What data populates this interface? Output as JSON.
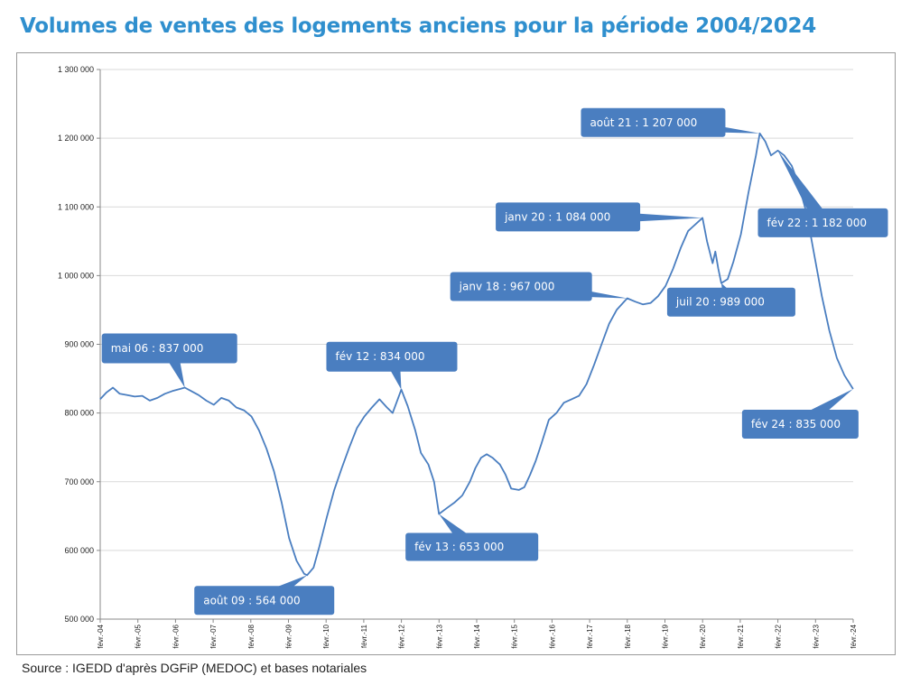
{
  "title": "Volumes de ventes des logements anciens pour la période 2004/2024",
  "source": "Source : IGEDD d'après DGFiP (MEDOC) et bases notariales",
  "colors": {
    "title": "#2f8fce",
    "line": "#4a7ec0",
    "callout": "#4a7ec0",
    "grid": "#d9d9d9"
  },
  "chart_data": {
    "type": "line",
    "title": "Volumes de ventes des logements anciens pour la période 2004/2024",
    "xlabel": "",
    "ylabel": "",
    "ylim": [
      500000,
      1300000
    ],
    "yticks": [
      500000,
      600000,
      700000,
      800000,
      900000,
      1000000,
      1100000,
      1200000,
      1300000
    ],
    "ytick_labels": [
      "500 000",
      "600 000",
      "700 000",
      "800 000",
      "900 000",
      "1 000 000",
      "1 100 000",
      "1 200 000",
      "1 300 000"
    ],
    "xlim": [
      2004.083,
      2024.083
    ],
    "xtick_labels": [
      "févr.-04",
      "févr.-05",
      "févr.-06",
      "févr.-07",
      "févr.-08",
      "févr.-09",
      "févr.-10",
      "févr.-11",
      "févr.-12",
      "févr.-13",
      "févr.-14",
      "févr.-15",
      "févr.-16",
      "févr.-17",
      "févr.-18",
      "févr.-19",
      "févr.-20",
      "févr.-21",
      "févr.-22",
      "févr.-23",
      "févr.-24"
    ],
    "grid": true,
    "legend": "none",
    "series": [
      {
        "points": [
          [
            2004.08,
            820000
          ],
          [
            2004.25,
            830000
          ],
          [
            2004.42,
            837000
          ],
          [
            2004.6,
            828000
          ],
          [
            2004.8,
            826000
          ],
          [
            2005.0,
            824000
          ],
          [
            2005.2,
            825000
          ],
          [
            2005.4,
            818000
          ],
          [
            2005.6,
            822000
          ],
          [
            2005.8,
            828000
          ],
          [
            2006.0,
            832000
          ],
          [
            2006.2,
            835000
          ],
          [
            2006.33,
            837000
          ],
          [
            2006.5,
            832000
          ],
          [
            2006.7,
            826000
          ],
          [
            2006.9,
            818000
          ],
          [
            2007.1,
            812000
          ],
          [
            2007.3,
            822000
          ],
          [
            2007.5,
            818000
          ],
          [
            2007.7,
            808000
          ],
          [
            2007.9,
            804000
          ],
          [
            2008.1,
            795000
          ],
          [
            2008.3,
            775000
          ],
          [
            2008.5,
            748000
          ],
          [
            2008.7,
            715000
          ],
          [
            2008.9,
            670000
          ],
          [
            2009.1,
            618000
          ],
          [
            2009.3,
            585000
          ],
          [
            2009.5,
            566000
          ],
          [
            2009.58,
            564000
          ],
          [
            2009.75,
            575000
          ],
          [
            2009.9,
            605000
          ],
          [
            2010.1,
            648000
          ],
          [
            2010.3,
            688000
          ],
          [
            2010.5,
            720000
          ],
          [
            2010.7,
            750000
          ],
          [
            2010.9,
            778000
          ],
          [
            2011.1,
            795000
          ],
          [
            2011.3,
            808000
          ],
          [
            2011.5,
            820000
          ],
          [
            2011.7,
            808000
          ],
          [
            2011.85,
            800000
          ],
          [
            2012.08,
            834000
          ],
          [
            2012.25,
            810000
          ],
          [
            2012.45,
            775000
          ],
          [
            2012.6,
            742000
          ],
          [
            2012.8,
            725000
          ],
          [
            2012.95,
            700000
          ],
          [
            2013.08,
            653000
          ],
          [
            2013.3,
            662000
          ],
          [
            2013.5,
            670000
          ],
          [
            2013.7,
            680000
          ],
          [
            2013.9,
            700000
          ],
          [
            2014.05,
            720000
          ],
          [
            2014.2,
            735000
          ],
          [
            2014.35,
            740000
          ],
          [
            2014.5,
            735000
          ],
          [
            2014.7,
            725000
          ],
          [
            2014.85,
            710000
          ],
          [
            2015.0,
            690000
          ],
          [
            2015.2,
            688000
          ],
          [
            2015.35,
            692000
          ],
          [
            2015.5,
            710000
          ],
          [
            2015.65,
            730000
          ],
          [
            2015.8,
            755000
          ],
          [
            2016.0,
            790000
          ],
          [
            2016.2,
            800000
          ],
          [
            2016.4,
            815000
          ],
          [
            2016.6,
            820000
          ],
          [
            2016.8,
            825000
          ],
          [
            2017.0,
            842000
          ],
          [
            2017.2,
            870000
          ],
          [
            2017.4,
            900000
          ],
          [
            2017.6,
            930000
          ],
          [
            2017.8,
            950000
          ],
          [
            2018.08,
            967000
          ],
          [
            2018.3,
            962000
          ],
          [
            2018.5,
            958000
          ],
          [
            2018.7,
            960000
          ],
          [
            2018.9,
            970000
          ],
          [
            2019.1,
            985000
          ],
          [
            2019.3,
            1010000
          ],
          [
            2019.5,
            1040000
          ],
          [
            2019.7,
            1065000
          ],
          [
            2020.08,
            1084000
          ],
          [
            2020.2,
            1050000
          ],
          [
            2020.35,
            1018000
          ],
          [
            2020.42,
            1035000
          ],
          [
            2020.5,
            1010000
          ],
          [
            2020.58,
            989000
          ],
          [
            2020.75,
            995000
          ],
          [
            2020.9,
            1020000
          ],
          [
            2021.1,
            1060000
          ],
          [
            2021.3,
            1120000
          ],
          [
            2021.5,
            1175000
          ],
          [
            2021.6,
            1207000
          ],
          [
            2021.75,
            1195000
          ],
          [
            2021.9,
            1175000
          ],
          [
            2022.08,
            1182000
          ],
          [
            2022.25,
            1175000
          ],
          [
            2022.45,
            1160000
          ],
          [
            2022.65,
            1130000
          ],
          [
            2022.85,
            1090000
          ],
          [
            2023.05,
            1030000
          ],
          [
            2023.25,
            970000
          ],
          [
            2023.45,
            920000
          ],
          [
            2023.65,
            880000
          ],
          [
            2023.85,
            855000
          ],
          [
            2024.08,
            835000
          ]
        ]
      }
    ],
    "annotations": [
      {
        "label": "mai 06 : 837 000",
        "x": 2006.33,
        "y": 837000
      },
      {
        "label": "août 09 : 564 000",
        "x": 2009.58,
        "y": 564000
      },
      {
        "label": "fév 12 : 834 000",
        "x": 2012.08,
        "y": 834000
      },
      {
        "label": "fév 13 : 653 000",
        "x": 2013.08,
        "y": 653000
      },
      {
        "label": "janv  18 : 967 000",
        "x": 2018.08,
        "y": 967000
      },
      {
        "label": "janv 20 : 1 084 000",
        "x": 2020.08,
        "y": 1084000
      },
      {
        "label": "juil 20 : 989 000",
        "x": 2020.58,
        "y": 989000
      },
      {
        "label": "août 21 : 1 207 000",
        "x": 2021.6,
        "y": 1207000
      },
      {
        "label": "fév 22 : 1 182 000",
        "x": 2022.08,
        "y": 1182000
      },
      {
        "label": "fév 24 : 835 000",
        "x": 2024.08,
        "y": 835000
      }
    ]
  }
}
